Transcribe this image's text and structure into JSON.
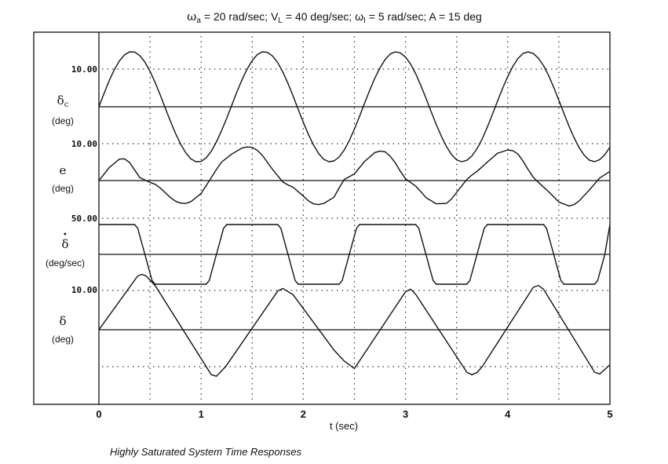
{
  "chart_data": {
    "type": "line",
    "title": {
      "omega_sym": "ω",
      "omega_a_sub": "a",
      "part1": " = 20 rad/sec; V",
      "v_sub": "L",
      "part2": " = 40 deg/sec; ω",
      "omega_i_sub": "I",
      "part3": " = 5 rad/sec; A = 15 deg"
    },
    "xlabel": "t (sec)",
    "xlim": [
      0,
      5
    ],
    "xticks": [
      "0",
      "1",
      "2",
      "3",
      "4",
      "5"
    ],
    "caption": "Highly Saturated System Time Responses",
    "series": [
      {
        "key": "delta_c",
        "symbol": "δ",
        "symbol_sub": "c",
        "unit": "(deg)",
        "scale_label": "10.00",
        "x": [
          0,
          0.05,
          0.1,
          0.15,
          0.2,
          0.25,
          0.3,
          0.35,
          0.4,
          0.45,
          0.5,
          0.55,
          0.6,
          0.65,
          0.7,
          0.75,
          0.8,
          0.85,
          0.9,
          0.95,
          1,
          1.05,
          1.1,
          1.15,
          1.2,
          1.25,
          1.3,
          1.35,
          1.4,
          1.45,
          1.5,
          1.55,
          1.6,
          1.65,
          1.7,
          1.75,
          1.8,
          1.85,
          1.9,
          1.95,
          2,
          2.05,
          2.1,
          2.15,
          2.2,
          2.25,
          2.3,
          2.35,
          2.4,
          2.45,
          2.5,
          2.55,
          2.6,
          2.65,
          2.7,
          2.75,
          2.8,
          2.85,
          2.9,
          2.95,
          3,
          3.05,
          3.1,
          3.15,
          3.2,
          3.25,
          3.3,
          3.35,
          3.4,
          3.45,
          3.5,
          3.55,
          3.6,
          3.65,
          3.7,
          3.75,
          3.8,
          3.85,
          3.9,
          3.95,
          4,
          4.05,
          4.1,
          4.15,
          4.2,
          4.25,
          4.3,
          4.35,
          4.4,
          4.45,
          4.5,
          4.55,
          4.6,
          4.65,
          4.7,
          4.75,
          4.8,
          4.85,
          4.9,
          4.95,
          5
        ],
        "y": [
          0,
          3.63,
          7.05,
          10.07,
          12.49,
          14.17,
          14.99,
          14.93,
          13.98,
          12.2,
          9.7,
          6.65,
          3.23,
          -0.37,
          -3.94,
          -7.28,
          -10.21,
          -12.57,
          -14.22,
          -15.0,
          -14.91,
          -13.94,
          -12.13,
          -9.61,
          -6.55,
          -3.13,
          0.44,
          4.04,
          7.34,
          10.27,
          12.61,
          14.25,
          15.0,
          14.86,
          13.84,
          12.02,
          9.46,
          6.36,
          2.92,
          -0.7,
          -4.24,
          -7.56,
          -10.44,
          -12.74,
          -14.33,
          -15.0,
          -14.79,
          -13.71,
          -11.83,
          -9.23,
          -6.09,
          -2.63,
          0.99,
          4.52,
          7.79,
          10.63,
          12.88,
          14.41,
          14.99,
          14.7,
          13.56,
          11.64,
          9.0,
          5.83,
          2.37,
          -1.28,
          -4.8,
          -8.02,
          -10.83,
          -13.02,
          -14.48,
          -14.99,
          -14.61,
          -13.41,
          -11.44,
          -8.77,
          -5.57,
          -2.08,
          1.55,
          5.04,
          8.25,
          11.01,
          13.15,
          14.54,
          14.98,
          14.52,
          13.26,
          11.24,
          8.54,
          5.31,
          1.81,
          -1.81,
          -5.31,
          -8.47,
          -11.18,
          -13.26,
          -14.59,
          -14.98,
          -14.42,
          -13.1,
          -11.03
        ]
      },
      {
        "key": "e",
        "symbol": "e",
        "unit": "(deg)",
        "scale_label": "10.00",
        "x": [
          0,
          0.1,
          0.2,
          0.25,
          0.3,
          0.4,
          0.5,
          0.55,
          0.6,
          0.7,
          0.75,
          0.8,
          0.85,
          0.9,
          1,
          1.1,
          1.15,
          1.2,
          1.3,
          1.4,
          1.45,
          1.5,
          1.55,
          1.6,
          1.7,
          1.8,
          1.85,
          1.9,
          2,
          2.05,
          2.1,
          2.15,
          2.2,
          2.3,
          2.35,
          2.4,
          2.5,
          2.6,
          2.7,
          2.75,
          2.8,
          2.85,
          2.9,
          2.95,
          3,
          3.1,
          3.15,
          3.2,
          3.3,
          3.4,
          3.45,
          3.5,
          3.6,
          3.65,
          3.7,
          3.8,
          3.9,
          4,
          4.05,
          4.1,
          4.15,
          4.2,
          4.25,
          4.3,
          4.4,
          4.5,
          4.6,
          4.65,
          4.7,
          4.8,
          4.9,
          5
        ],
        "y": [
          0,
          3.5,
          5.8,
          5.9,
          4.9,
          0.8,
          -0.5,
          -1.0,
          -2.0,
          -4.6,
          -5.6,
          -6.1,
          -6.2,
          -5.7,
          -3.5,
          0.8,
          3.0,
          5.0,
          7.2,
          8.8,
          9.1,
          9.0,
          8.2,
          6.8,
          3.0,
          -0.4,
          -1.2,
          -1.8,
          -4.2,
          -5.5,
          -6.3,
          -6.5,
          -6.2,
          -4.5,
          -2.0,
          0.3,
          1.8,
          5.2,
          7.6,
          8.0,
          7.8,
          6.6,
          4.8,
          2.5,
          0.5,
          -1.5,
          -3.0,
          -4.6,
          -6.3,
          -6.2,
          -5.0,
          -3.2,
          0.3,
          1.5,
          2.5,
          5.0,
          7.4,
          8.3,
          8.1,
          7.2,
          5.3,
          3.0,
          0.9,
          -0.5,
          -3.0,
          -5.8,
          -6.9,
          -6.5,
          -5.5,
          -2.5,
          0.7,
          2.5
        ]
      },
      {
        "key": "delta_dot",
        "symbol": "δ",
        "symbol_mark": "•",
        "unit": "(deg/sec)",
        "scale_label": "50.00",
        "x": [
          0,
          0.35,
          0.38,
          0.42,
          0.45,
          0.48,
          0.52,
          0.55,
          0.6,
          1.05,
          1.08,
          1.12,
          1.15,
          1.18,
          1.22,
          1.25,
          1.3,
          1.75,
          1.78,
          1.82,
          1.85,
          1.88,
          1.92,
          1.95,
          2.0,
          2.35,
          2.38,
          2.42,
          2.45,
          2.48,
          2.52,
          2.55,
          2.6,
          3.1,
          3.13,
          3.17,
          3.2,
          3.23,
          3.27,
          3.3,
          3.35,
          3.6,
          3.63,
          3.67,
          3.7,
          3.73,
          3.77,
          3.8,
          3.85,
          4.35,
          4.38,
          4.42,
          4.45,
          4.48,
          4.52,
          4.55,
          4.6,
          4.85,
          4.88,
          4.92,
          4.95,
          5.0
        ],
        "y": [
          40,
          40,
          35,
          15,
          0,
          -15,
          -35,
          -40,
          -40,
          -40,
          -35,
          -15,
          0,
          15,
          35,
          40,
          40,
          40,
          35,
          15,
          0,
          -15,
          -35,
          -40,
          -40,
          -40,
          -35,
          -15,
          0,
          15,
          35,
          40,
          40,
          40,
          35,
          15,
          0,
          -15,
          -35,
          -40,
          -40,
          -40,
          -35,
          -15,
          0,
          15,
          35,
          40,
          40,
          40,
          35,
          15,
          0,
          -15,
          -35,
          -40,
          -40,
          -40,
          -35,
          -15,
          0,
          40
        ]
      },
      {
        "key": "delta",
        "symbol": "δ",
        "unit": "(deg)",
        "scale_label": "10.00",
        "x": [
          0,
          0.38,
          0.42,
          0.46,
          0.55,
          1.1,
          1.15,
          1.24,
          1.75,
          1.8,
          1.9,
          2.3,
          2.4,
          2.45,
          2.5,
          3.0,
          3.05,
          3.1,
          3.6,
          3.65,
          3.7,
          3.75,
          4.25,
          4.3,
          4.35,
          4.85,
          4.9,
          5.0
        ],
        "y": [
          0,
          14.6,
          15.0,
          14.6,
          12.0,
          -12.2,
          -12.6,
          -10.0,
          10.5,
          11.2,
          9.5,
          -5.5,
          -8.5,
          -9.5,
          -10.5,
          10.3,
          11.0,
          9.6,
          -11.5,
          -12.2,
          -11.6,
          -10.0,
          11.5,
          12.0,
          11.0,
          -11.5,
          -12.0,
          -9.5
        ]
      }
    ]
  }
}
